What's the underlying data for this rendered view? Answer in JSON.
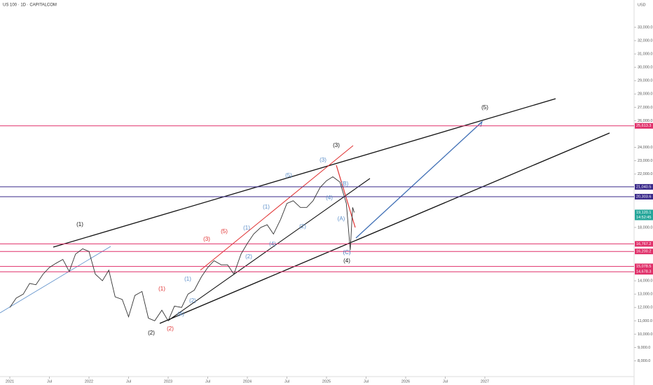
{
  "title": "US 100 · 1D · CAPITALCOM",
  "currency": "USD",
  "countdown": "14:52:45",
  "chart_data": {
    "type": "line",
    "color": "#333333",
    "x": [
      2021.0,
      2021.08,
      2021.17,
      2021.25,
      2021.33,
      2021.42,
      2021.5,
      2021.58,
      2021.67,
      2021.75,
      2021.83,
      2021.92,
      2022.0,
      2022.08,
      2022.17,
      2022.25,
      2022.33,
      2022.42,
      2022.5,
      2022.58,
      2022.67,
      2022.75,
      2022.83,
      2022.92,
      2023.0,
      2023.08,
      2023.17,
      2023.25,
      2023.33,
      2023.42,
      2023.5,
      2023.58,
      2023.67,
      2023.75,
      2023.83,
      2023.92,
      2024.0,
      2024.08,
      2024.17,
      2024.25,
      2024.33,
      2024.42,
      2024.5,
      2024.58,
      2024.67,
      2024.75,
      2024.83,
      2024.92,
      2025.0,
      2025.08,
      2025.17,
      2025.25,
      2025.3,
      2025.33,
      2025.35
    ],
    "values": [
      12000,
      12700,
      13000,
      13800,
      13700,
      14500,
      15000,
      15300,
      15600,
      14700,
      16000,
      16400,
      16200,
      14500,
      14000,
      14800,
      12800,
      12600,
      11300,
      12900,
      13200,
      11200,
      11000,
      11800,
      11000,
      12100,
      12000,
      13000,
      13300,
      14300,
      15000,
      15500,
      15200,
      15200,
      14500,
      16000,
      16800,
      17500,
      18000,
      18200,
      17500,
      18600,
      19800,
      20000,
      19500,
      19500,
      20000,
      21000,
      21500,
      21800,
      21400,
      19800,
      16300,
      19500,
      19120.1
    ],
    "xlim": [
      2020.876,
      2028.885
    ],
    "ylim": [
      6819,
      35045
    ],
    "xticks": [
      2021,
      {
        "value": 2021.5,
        "label": "Jul"
      },
      2022,
      {
        "value": 2022.5,
        "label": "Jul"
      },
      2023,
      {
        "value": 2023.5,
        "label": "Jul"
      },
      2024,
      {
        "value": 2024.5,
        "label": "Jul"
      },
      2025,
      {
        "value": 2025.5,
        "label": "Jul"
      },
      2026,
      {
        "value": 2026.5,
        "label": "Jul"
      },
      2027
    ],
    "yticks": [
      {
        "value": 8000,
        "label": "8,000.0"
      },
      {
        "value": 9000,
        "label": "9,000.0"
      },
      {
        "value": 10000,
        "label": "10,000.0"
      },
      {
        "value": 11000,
        "label": "11,000.0"
      },
      {
        "value": 12000,
        "label": "12,000.0"
      },
      {
        "value": 13000,
        "label": "13,000.0"
      },
      {
        "value": 14000,
        "label": "14,000.0"
      },
      {
        "value": 18000,
        "label": "18,000.0"
      },
      {
        "value": 22000,
        "label": "22,000.0"
      },
      {
        "value": 23000,
        "label": "23,000.0"
      },
      {
        "value": 24000,
        "label": "24,000.0"
      },
      {
        "value": 26000,
        "label": "26,000.0"
      },
      {
        "value": 27000,
        "label": "27,000.0"
      },
      {
        "value": 28000,
        "label": "28,000.0"
      },
      {
        "value": 29000,
        "label": "29,000.0"
      },
      {
        "value": 30000,
        "label": "30,000.0"
      },
      {
        "value": 31000,
        "label": "31,000.0"
      },
      {
        "value": 32000,
        "label": "32,000.0"
      },
      {
        "value": 33000,
        "label": "33,000.0"
      }
    ],
    "levels": [
      {
        "value": 25613.3,
        "label": "25,613.3",
        "color": "#e0306a"
      },
      {
        "value": 21040.5,
        "label": "21,040.5",
        "color": "#3a2a8a"
      },
      {
        "value": 20303.6,
        "label": "20,303.6",
        "color": "#3a2a8a"
      },
      {
        "value": 16767.2,
        "label": "16,767.2",
        "color": "#e0306a"
      },
      {
        "value": 16200.2,
        "label": "16,200.2",
        "color": "#e0306a"
      },
      {
        "value": 15078.5,
        "label": "15,078.5",
        "color": "#e0306a"
      },
      {
        "value": 14678.3,
        "label": "14,678.3",
        "color": "#e0306a"
      }
    ],
    "price_label": {
      "value": 19120.1,
      "label": "19,120.1",
      "color": "#26a69a"
    },
    "annotations": [
      {
        "text": "(1)",
        "color": "#111111"
      },
      {
        "text": "(2)",
        "color": "#111111"
      },
      {
        "text": "(3)",
        "color": "#111111"
      },
      {
        "text": "(4)",
        "color": "#111111"
      },
      {
        "text": "(5)",
        "color": "#111111"
      },
      {
        "text": "(C)",
        "color": "#3f6fb5"
      },
      {
        "text": "(1)",
        "color": "#e03030"
      },
      {
        "text": "(2)",
        "color": "#e03030"
      },
      {
        "text": "(3)",
        "color": "#e03030"
      },
      {
        "text": "(5)",
        "color": "#e03030"
      },
      {
        "text": "(5)",
        "color": "#5b8ec9"
      },
      {
        "text": "(3)",
        "color": "#5b8ec9"
      },
      {
        "text": "(1)",
        "color": "#5b8ec9"
      },
      {
        "text": "(4)",
        "color": "#5b8ec9"
      },
      {
        "text": "(2)",
        "color": "#5b8ec9"
      },
      {
        "text": "(A)",
        "color": "#5b8ec9"
      },
      {
        "text": "(B)",
        "color": "#5b8ec9"
      },
      {
        "text": "(1)",
        "color": "#5b8ec9"
      },
      {
        "text": "(2)",
        "color": "#5b8ec9"
      },
      {
        "text": "(4)",
        "color": "#5b8ec9"
      },
      {
        "text": "(1)",
        "color": "#5b8ec9"
      },
      {
        "text": "(2)",
        "color": "#5b8ec9"
      },
      {
        "text": "(4)",
        "color": "#5b8ec9"
      }
    ]
  }
}
